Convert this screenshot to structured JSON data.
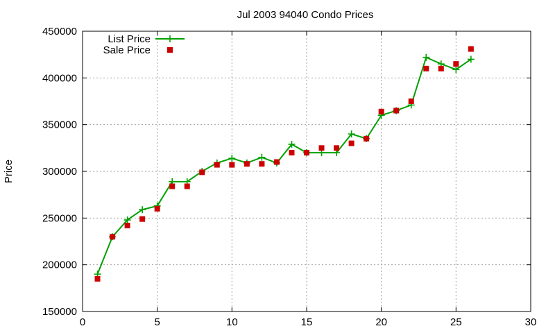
{
  "chart_data": {
    "type": "line",
    "title": "Jul 2003 94040 Condo Prices",
    "xlabel": "",
    "ylabel": "Price",
    "xlim": [
      0,
      30
    ],
    "ylim": [
      150000,
      450000
    ],
    "xticks": [
      0,
      5,
      10,
      15,
      20,
      25,
      30
    ],
    "yticks": [
      150000,
      200000,
      250000,
      300000,
      350000,
      400000,
      450000
    ],
    "grid": true,
    "legend_position": "top-left",
    "series": [
      {
        "name": "List Price",
        "style": "linespoints",
        "color": "#00a000",
        "x": [
          1,
          2,
          3,
          4,
          5,
          6,
          7,
          8,
          9,
          10,
          11,
          12,
          13,
          14,
          15,
          16,
          17,
          18,
          19,
          20,
          21,
          22,
          23,
          24,
          25,
          26
        ],
        "y": [
          190000,
          230000,
          248000,
          259000,
          263000,
          289000,
          289000,
          300000,
          309000,
          314000,
          309000,
          315000,
          309000,
          329000,
          320000,
          320000,
          320000,
          340000,
          335000,
          360000,
          365000,
          371000,
          422000,
          415000,
          409000,
          420000
        ]
      },
      {
        "name": "Sale Price",
        "style": "points",
        "color": "#cc0000",
        "x": [
          1,
          2,
          3,
          4,
          5,
          6,
          7,
          8,
          9,
          10,
          11,
          12,
          13,
          14,
          15,
          16,
          17,
          18,
          19,
          20,
          21,
          22,
          23,
          24,
          25,
          26
        ],
        "y": [
          185000,
          230000,
          242000,
          249000,
          260000,
          284000,
          284000,
          299000,
          307000,
          307000,
          308000,
          308000,
          310000,
          320000,
          320000,
          325000,
          325000,
          330000,
          335000,
          364000,
          365000,
          375000,
          410000,
          410000,
          415000,
          431000
        ]
      }
    ]
  }
}
